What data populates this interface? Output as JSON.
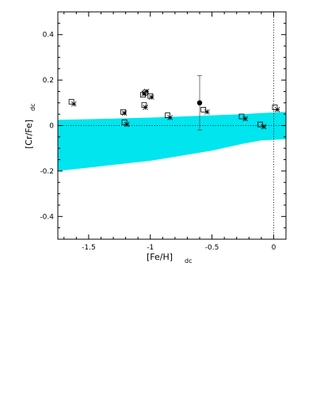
{
  "chart_data": {
    "type": "scatter",
    "xlabel": "[Fe/H]",
    "xlabel_sub": "dc",
    "ylabel": "[Cr/Fe]",
    "ylabel_sub": "dc",
    "xlim": [
      -1.75,
      0.1
    ],
    "ylim": [
      -0.5,
      0.5
    ],
    "x_ticks": [
      -1.5,
      -1.0,
      -0.5,
      0.0
    ],
    "x_tick_labels": [
      "-1.5",
      "-1",
      "-0.5",
      "0"
    ],
    "y_ticks": [
      -0.4,
      -0.2,
      0.0,
      0.2,
      0.4
    ],
    "y_tick_labels": [
      "-0.4",
      "-0.2",
      "0",
      "0.2",
      "0.4"
    ],
    "reference_lines": {
      "horizontal_dotted_y": 0.0,
      "vertical_dotted_x": 0.0
    },
    "band": {
      "color": "#00e5ee",
      "x": [
        -1.75,
        -1.5,
        -1.0,
        -0.5,
        -0.25,
        -0.1,
        0.1
      ],
      "upper": [
        0.025,
        0.028,
        0.035,
        0.045,
        0.05,
        0.055,
        0.06
      ],
      "lower": [
        -0.2,
        -0.185,
        -0.155,
        -0.11,
        -0.08,
        -0.065,
        -0.06
      ]
    },
    "series": [
      {
        "marker": "square",
        "x": [
          -1.64,
          -1.22,
          -1.21,
          -1.06,
          -1.05,
          -1.04,
          -1.0,
          -0.86,
          -0.57,
          -0.26,
          -0.11,
          0.01
        ],
        "y": [
          0.105,
          0.06,
          0.015,
          0.135,
          0.09,
          0.145,
          0.13,
          0.045,
          0.07,
          0.04,
          0.005,
          0.08
        ]
      },
      {
        "marker": "asterisk",
        "x": [
          -1.62,
          -1.21,
          -1.19,
          -1.05,
          -1.04,
          -1.03,
          -0.99,
          -0.84,
          -0.54,
          -0.23,
          -0.08,
          0.03
        ],
        "y": [
          0.095,
          0.055,
          0.005,
          0.14,
          0.08,
          0.15,
          0.125,
          0.035,
          0.06,
          0.03,
          -0.005,
          0.07
        ]
      },
      {
        "marker": "filled-circle",
        "x": [
          -0.6
        ],
        "y": [
          0.1
        ],
        "err_low": [
          -0.02
        ],
        "err_high": [
          0.22
        ]
      }
    ]
  }
}
